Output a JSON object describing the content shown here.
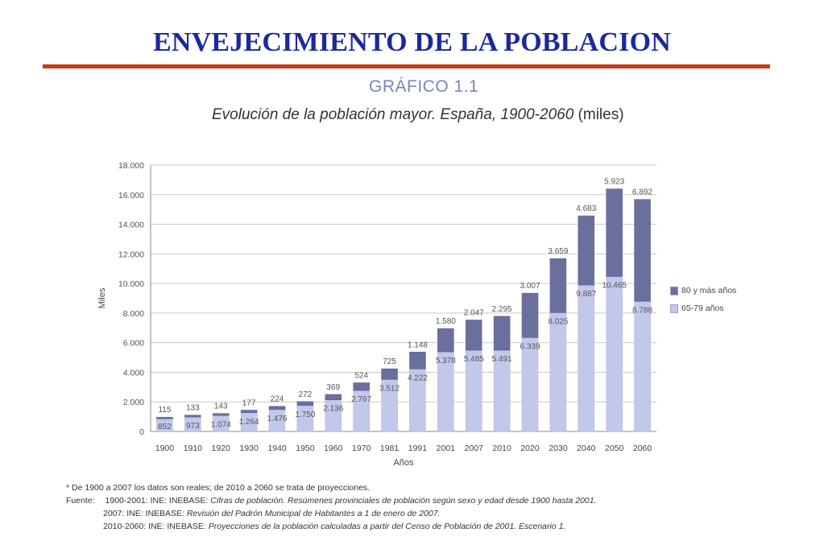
{
  "slide": {
    "title": "ENVEJECIMIENTO DE LA POBLACION"
  },
  "figure": {
    "label": "GRÁFICO 1.1",
    "subtitle_italic": "Evolución de la población mayor. España, 1900-2060",
    "subtitle_units": "(miles)"
  },
  "colors": {
    "title": "#1a2a9c",
    "rule": "#cc3a12",
    "series_80": "#6b6f9e",
    "series_65": "#c3c8ea"
  },
  "chart_data": {
    "type": "bar",
    "stacked": true,
    "categories": [
      "1900",
      "1910",
      "1920",
      "1930",
      "1940",
      "1950",
      "1960",
      "1970",
      "1981",
      "1991",
      "2001",
      "2007",
      "2010",
      "2020",
      "2030",
      "2040",
      "2050",
      "2060"
    ],
    "series": [
      {
        "name": "65-79 años",
        "values": [
          852,
          973,
          1074,
          1264,
          1476,
          1750,
          2136,
          2767,
          3512,
          4222,
          5378,
          5485,
          5491,
          6339,
          8025,
          9887,
          10465,
          8788
        ]
      },
      {
        "name": "80 y más años",
        "values": [
          115,
          133,
          143,
          177,
          224,
          272,
          369,
          524,
          725,
          1148,
          1580,
          2047,
          2295,
          3007,
          3659,
          4683,
          5923,
          6892
        ]
      }
    ],
    "labels_65": [
      "852",
      "973",
      "1.074",
      "1.264",
      "1.476",
      "1.750",
      "2.136",
      "2.767",
      "3.512",
      "4.222",
      "5.378",
      "5.485",
      "5.491",
      "6.339",
      "8.025",
      "9.887",
      "10.465",
      "8.788"
    ],
    "labels_80": [
      "115",
      "133",
      "143",
      "177",
      "224",
      "272",
      "369",
      "524",
      "725",
      "1.148",
      "1.580",
      "2.047",
      "2.295",
      "3.007",
      "3.659",
      "4.683",
      "5.923",
      "6.892"
    ],
    "xlabel": "Años",
    "ylabel": "Miles",
    "ylim": [
      0,
      18000
    ],
    "yticks": [
      0,
      2000,
      4000,
      6000,
      8000,
      10000,
      12000,
      14000,
      16000,
      18000
    ],
    "ytick_labels": [
      "0",
      "2.000",
      "4.000",
      "6.000",
      "8.000",
      "10.000",
      "12.000",
      "14.000",
      "16.000",
      "18.000"
    ],
    "grid": true,
    "legend_position": "right"
  },
  "legend": {
    "items": [
      {
        "label": "80 y más años",
        "color": "#6b6f9e"
      },
      {
        "label": "65-79 años",
        "color": "#c3c8ea"
      }
    ]
  },
  "notes": {
    "asterisk": "*  De 1900 a 2007 los datos son reales; de 2010 a 2060 se trata de proyecciones.",
    "source_label": "Fuente:",
    "line1_prefix": "1900-2001: INE: INEBASE: ",
    "line1_italic": "Cifras de población. Resúmenes provinciales de población según sexo y edad desde 1900 hasta 2001.",
    "line2_prefix": "2007: INE: INEBASE: ",
    "line2_italic": "Revisión del Padrón Municipal de Habitantes a 1 de enero de 2007.",
    "line3_prefix": "2010-2060: INE: INEBASE: ",
    "line3_italic": "Proyecciones de la población calculadas a partir del Censo de Población de 2001. Escenario 1."
  }
}
